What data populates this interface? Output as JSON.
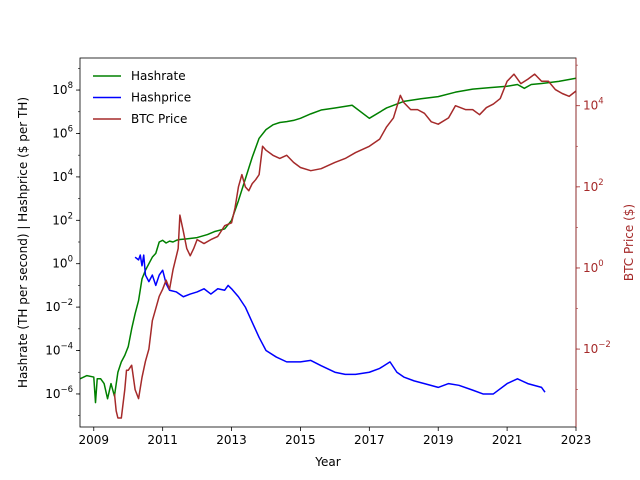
{
  "chart_data": {
    "type": "line",
    "title": "",
    "xlabel": "Year",
    "ylabel_left": "Hashrate (TH per second) | Hashprice ($ per TH)",
    "ylabel_right": "BTC Price ($)",
    "xlim": [
      2008.6,
      2023.0
    ],
    "xticks": [
      2009,
      2011,
      2013,
      2015,
      2017,
      2019,
      2021,
      2023
    ],
    "y_left_scale": "log",
    "y_left_lim": [
      3e-08,
      3000000000.0
    ],
    "y_left_ticks": [
      {
        "value": 1e-06,
        "base": "10",
        "exp": "−6"
      },
      {
        "value": 0.0001,
        "base": "10",
        "exp": "−4"
      },
      {
        "value": 0.01,
        "base": "10",
        "exp": "−2"
      },
      {
        "value": 1.0,
        "base": "10",
        "exp": "0"
      },
      {
        "value": 100.0,
        "base": "10",
        "exp": "2"
      },
      {
        "value": 10000.0,
        "base": "10",
        "exp": "4"
      },
      {
        "value": 1000000.0,
        "base": "10",
        "exp": "6"
      },
      {
        "value": 100000000.0,
        "base": "10",
        "exp": "8"
      }
    ],
    "y_right_scale": "log",
    "y_right_lim": [
      0.00012,
      150000
    ],
    "y_right_ticks": [
      {
        "value": 0.01,
        "base": "10",
        "exp": "−2"
      },
      {
        "value": 1,
        "base": "10",
        "exp": "0"
      },
      {
        "value": 100,
        "base": "10",
        "exp": "2"
      },
      {
        "value": 10000,
        "base": "10",
        "exp": "4"
      }
    ],
    "right_axis_color": "#a52a2a",
    "legend_position": "upper-left",
    "series": [
      {
        "name": "Hashrate",
        "axis": "left",
        "color": "#008000",
        "x": [
          2008.6,
          2008.8,
          2009.0,
          2009.05,
          2009.1,
          2009.2,
          2009.3,
          2009.4,
          2009.5,
          2009.6,
          2009.7,
          2009.8,
          2009.9,
          2010.0,
          2010.1,
          2010.2,
          2010.3,
          2010.4,
          2010.5,
          2010.6,
          2010.7,
          2010.8,
          2010.9,
          2011.0,
          2011.1,
          2011.2,
          2011.3,
          2011.4,
          2011.5,
          2011.7,
          2012.0,
          2012.3,
          2012.5,
          2012.8,
          2013.0,
          2013.2,
          2013.4,
          2013.6,
          2013.8,
          2014.0,
          2014.2,
          2014.4,
          2014.6,
          2014.8,
          2015.0,
          2015.3,
          2015.6,
          2016.0,
          2016.5,
          2017.0,
          2017.5,
          2018.0,
          2018.5,
          2019.0,
          2019.5,
          2020.0,
          2020.5,
          2021.0,
          2021.3,
          2021.5,
          2021.7,
          2022.0,
          2022.5,
          2023.0
        ],
        "y": [
          5e-06,
          7e-06,
          6e-06,
          4e-07,
          5e-06,
          5e-06,
          3e-06,
          6e-07,
          3e-06,
          8e-07,
          1e-05,
          3e-05,
          6e-05,
          0.00015,
          0.001,
          0.005,
          0.02,
          0.2,
          0.5,
          1.0,
          2.0,
          3.0,
          10,
          12,
          9,
          11,
          10,
          12,
          13,
          14,
          16,
          22,
          30,
          40,
          100,
          800,
          8000,
          80000,
          600000,
          1500000.0,
          2500000.0,
          3200000.0,
          3500000.0,
          4000000.0,
          5000000.0,
          8000000.0,
          12000000.0,
          15000000.0,
          20000000.0,
          5000000.0,
          15000000.0,
          30000000.0,
          40000000.0,
          50000000.0,
          80000000.0,
          110000000.0,
          130000000.0,
          150000000.0,
          180000000.0,
          120000000.0,
          180000000.0,
          200000000.0,
          250000000.0,
          350000000.0
        ]
      },
      {
        "name": "Hashprice",
        "axis": "left",
        "color": "#0000ff",
        "x": [
          2010.2,
          2010.3,
          2010.35,
          2010.4,
          2010.45,
          2010.5,
          2010.6,
          2010.7,
          2010.8,
          2010.9,
          2011.0,
          2011.1,
          2011.2,
          2011.4,
          2011.6,
          2011.8,
          2012.0,
          2012.2,
          2012.4,
          2012.6,
          2012.8,
          2012.9,
          2013.0,
          2013.2,
          2013.4,
          2013.6,
          2013.8,
          2014.0,
          2014.3,
          2014.6,
          2015.0,
          2015.3,
          2015.6,
          2016.0,
          2016.3,
          2016.6,
          2017.0,
          2017.3,
          2017.6,
          2017.8,
          2018.0,
          2018.3,
          2018.6,
          2019.0,
          2019.3,
          2019.6,
          2020.0,
          2020.3,
          2020.6,
          2021.0,
          2021.3,
          2021.6,
          2022.0,
          2022.1
        ],
        "y": [
          2,
          1.5,
          2.5,
          0.8,
          2.5,
          0.3,
          0.15,
          0.3,
          0.1,
          0.3,
          0.5,
          0.12,
          0.06,
          0.05,
          0.03,
          0.04,
          0.05,
          0.07,
          0.04,
          0.07,
          0.06,
          0.1,
          0.07,
          0.03,
          0.01,
          0.002,
          0.0004,
          0.0001,
          5e-05,
          3e-05,
          3e-05,
          3.5e-05,
          2e-05,
          1e-05,
          8e-06,
          8e-06,
          1e-05,
          1.5e-05,
          3e-05,
          1e-05,
          6e-06,
          4e-06,
          3e-06,
          2e-06,
          3e-06,
          2.5e-06,
          1.5e-06,
          1e-06,
          1e-06,
          3e-06,
          5e-06,
          3e-06,
          2e-06,
          1.2e-06
        ]
      },
      {
        "name": "BTC Price",
        "axis": "right",
        "color": "#a52a2a",
        "x": [
          2009.6,
          2009.65,
          2009.7,
          2009.8,
          2009.9,
          2009.95,
          2010.0,
          2010.1,
          2010.2,
          2010.3,
          2010.4,
          2010.5,
          2010.6,
          2010.7,
          2010.8,
          2010.9,
          2011.0,
          2011.1,
          2011.2,
          2011.3,
          2011.45,
          2011.5,
          2011.6,
          2011.7,
          2011.8,
          2011.9,
          2012.0,
          2012.2,
          2012.4,
          2012.6,
          2012.8,
          2013.0,
          2013.1,
          2013.2,
          2013.3,
          2013.4,
          2013.5,
          2013.6,
          2013.7,
          2013.8,
          2013.9,
          2014.0,
          2014.2,
          2014.4,
          2014.6,
          2014.8,
          2015.0,
          2015.3,
          2015.6,
          2016.0,
          2016.3,
          2016.6,
          2017.0,
          2017.3,
          2017.5,
          2017.7,
          2017.9,
          2018.0,
          2018.2,
          2018.4,
          2018.6,
          2018.8,
          2019.0,
          2019.3,
          2019.5,
          2019.8,
          2020.0,
          2020.2,
          2020.4,
          2020.6,
          2020.8,
          2021.0,
          2021.2,
          2021.4,
          2021.6,
          2021.8,
          2022.0,
          2022.2,
          2022.4,
          2022.6,
          2022.8,
          2023.0
        ],
        "y": [
          0.0008,
          0.0003,
          0.0002,
          0.0002,
          0.001,
          0.003,
          0.003,
          0.004,
          0.001,
          0.0006,
          0.002,
          0.005,
          0.01,
          0.05,
          0.1,
          0.2,
          0.3,
          0.5,
          0.3,
          0.9,
          3,
          20,
          8,
          3,
          2,
          3,
          5,
          4,
          5,
          6,
          11,
          13,
          30,
          100,
          200,
          100,
          80,
          120,
          150,
          200,
          1000,
          800,
          600,
          500,
          600,
          400,
          300,
          250,
          280,
          400,
          500,
          700,
          1000,
          1500,
          3000,
          5000,
          18000,
          12000,
          8000,
          8000,
          6500,
          4000,
          3500,
          5000,
          10000,
          8000,
          8000,
          6000,
          9000,
          11000,
          15000,
          40000,
          60000,
          35000,
          45000,
          60000,
          40000,
          40000,
          25000,
          20000,
          17000,
          23000
        ]
      }
    ]
  }
}
